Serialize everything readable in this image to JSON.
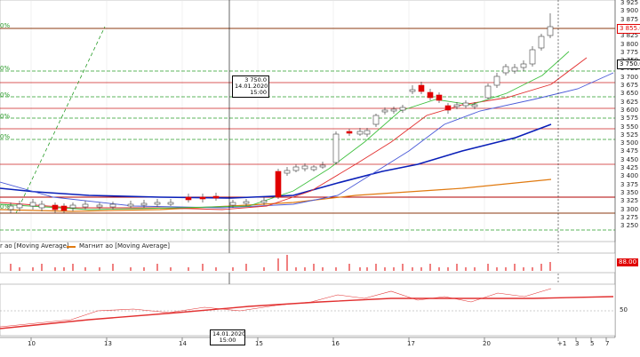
{
  "price_axis": {
    "ticks": [
      "3 925",
      "3 900",
      "3 875",
      "3 850",
      "3 825",
      "3 800",
      "3 775",
      "3 750",
      "3 725",
      "3 700",
      "3 675",
      "3 650",
      "3 625",
      "3 600",
      "3 575",
      "3 550",
      "3 525",
      "3 500",
      "3 475",
      "3 450",
      "3 425",
      "3 400",
      "3 375",
      "3 350",
      "3 325",
      "3 300",
      "3 275",
      "3 250"
    ],
    "last_price_tag": "3 855.0",
    "current_price_tag": "3 750.0"
  },
  "pct_labels": [
    "0%",
    "0%",
    "0%",
    "0%",
    "0%",
    "0%"
  ],
  "tooltip": {
    "price": "3 750.0",
    "date": "14.01.2020",
    "time": "15:00"
  },
  "legend": {
    "fast_ma": "r ao [Moving Average]",
    "slow_ma": "Магнит ао [Moving Average]"
  },
  "volume_tag": "88.00",
  "indicator_axis": {
    "tick": "50"
  },
  "time_axis": {
    "labels": [
      "10",
      "13",
      "14",
      "15",
      "16",
      "17",
      "20",
      "+1",
      "3",
      "5",
      "7"
    ],
    "cursor": {
      "date": "14.01.2020",
      "time": "15:00"
    }
  },
  "colors": {
    "bull": "#ffffff",
    "bear": "#e00000",
    "candle_border": "#444444",
    "ma_blue_dark": "#0a1fb8",
    "ma_blue": "#4a5ad8",
    "ma_orange": "#e07a10",
    "ma_red": "#e23030",
    "ma_green": "#40c040",
    "fib": "#2a9d2a"
  }
}
